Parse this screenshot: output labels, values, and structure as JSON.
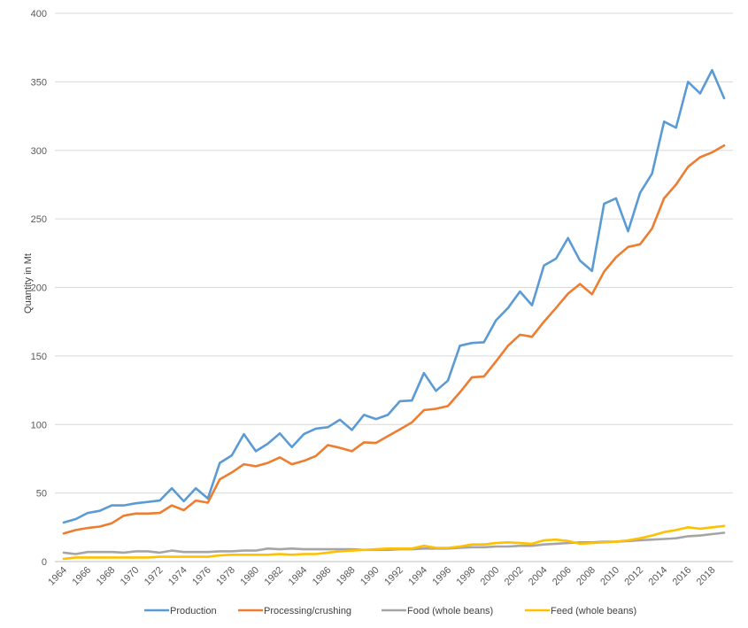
{
  "chart_data": {
    "type": "line",
    "title": "",
    "xlabel": "",
    "ylabel": "Quantity in Mt",
    "ylim": [
      0,
      400
    ],
    "yticks": [
      0,
      50,
      100,
      150,
      200,
      250,
      300,
      350,
      400
    ],
    "xtick_labels": [
      "1964",
      "1966",
      "1968",
      "1970",
      "1972",
      "1974",
      "1976",
      "1978",
      "1980",
      "1982",
      "1984",
      "1986",
      "1988",
      "1990",
      "1992",
      "1994",
      "1996",
      "1998",
      "2000",
      "2002",
      "2004",
      "2006",
      "2008",
      "2010",
      "2012",
      "2014",
      "2016",
      "2018"
    ],
    "grid": "horizontal",
    "legend_position": "bottom",
    "x": [
      1964,
      1965,
      1966,
      1967,
      1968,
      1969,
      1970,
      1971,
      1972,
      1973,
      1974,
      1975,
      1976,
      1977,
      1978,
      1979,
      1980,
      1981,
      1982,
      1983,
      1984,
      1985,
      1986,
      1987,
      1988,
      1989,
      1990,
      1991,
      1992,
      1993,
      1994,
      1995,
      1996,
      1997,
      1998,
      1999,
      2000,
      2001,
      2002,
      2003,
      2004,
      2005,
      2006,
      2007,
      2008,
      2009,
      2010,
      2011,
      2012,
      2013,
      2014,
      2015,
      2016,
      2017,
      2018,
      2019
    ],
    "series": [
      {
        "name": "Production",
        "color": "#5b9bd5",
        "values": [
          28.5,
          31,
          35.5,
          37,
          41,
          41,
          42.5,
          43.5,
          44.5,
          53.5,
          44,
          53.5,
          46,
          72,
          77.5,
          93,
          80.5,
          86,
          93.5,
          83.5,
          93,
          97,
          98,
          103.5,
          96,
          107,
          104,
          107,
          117,
          117.5,
          137.5,
          124.5,
          132,
          157.5,
          159.5,
          160,
          176,
          185,
          197,
          187,
          216,
          221,
          236,
          219.5,
          212,
          261,
          265,
          241,
          269,
          283,
          321,
          316.5,
          350,
          341.5,
          358.5,
          338
        ]
      },
      {
        "name": "Processing/crushing",
        "color": "#ed7d31",
        "values": [
          20.5,
          23,
          24.5,
          25.5,
          28,
          33.5,
          35,
          35,
          35.5,
          41,
          37.5,
          44.5,
          43,
          60,
          65,
          71,
          69.5,
          72,
          76,
          71,
          73.5,
          77,
          85,
          83,
          80.5,
          87,
          86.5,
          91.5,
          96.5,
          101.5,
          110.5,
          111.5,
          113.5,
          123.5,
          134.5,
          135,
          146,
          157.5,
          165.5,
          164,
          175,
          185,
          195.5,
          202.5,
          195,
          211.5,
          222,
          229.5,
          231.5,
          243,
          265,
          275,
          288,
          295,
          298.5,
          303.5
        ]
      },
      {
        "name": "Food (whole beans)",
        "color": "#a5a5a5",
        "values": [
          6.5,
          5.5,
          7,
          7,
          7,
          6.5,
          7.5,
          7.5,
          6.5,
          8,
          7,
          7,
          7,
          7.5,
          7.5,
          8,
          8,
          9.5,
          9,
          9.5,
          9,
          9,
          9,
          9,
          9,
          8.5,
          8.5,
          8.5,
          9,
          9,
          9.5,
          9.5,
          9.5,
          10,
          10.5,
          10.5,
          11,
          11,
          11.5,
          11.5,
          12.5,
          13,
          13.5,
          14,
          14,
          14.5,
          14.5,
          15,
          15.5,
          16,
          16.5,
          17,
          18.5,
          19,
          20,
          21
        ]
      },
      {
        "name": "Feed (whole beans)",
        "color": "#ffc000",
        "values": [
          2,
          3,
          3,
          3,
          3,
          3,
          3,
          3,
          3.5,
          3.5,
          3.5,
          3.5,
          3.5,
          4.5,
          5,
          5,
          5,
          5,
          5.5,
          5,
          5.5,
          5.5,
          6.5,
          7.5,
          8,
          8.5,
          9,
          9.5,
          9.5,
          9.5,
          11.5,
          10,
          10,
          11,
          12.5,
          12.5,
          13.5,
          14,
          13.5,
          13,
          15.5,
          16,
          15,
          13,
          13.5,
          14,
          14.5,
          15.5,
          17,
          19,
          21.5,
          23,
          25,
          24,
          25,
          26
        ]
      }
    ]
  }
}
